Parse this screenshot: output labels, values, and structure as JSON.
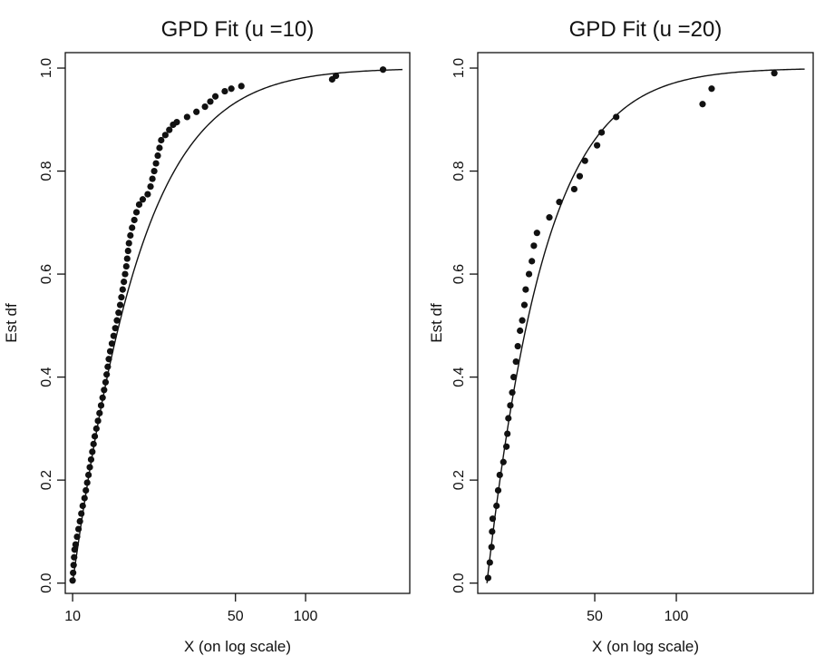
{
  "chart_data": [
    {
      "type": "scatter",
      "title": "GPD Fit (u =10)",
      "xlabel": "X (on log scale)",
      "ylabel": "Est df",
      "xscale": "log",
      "xlim": [
        9.3,
        280
      ],
      "ylim": [
        -0.02,
        1.03
      ],
      "xticks": [
        {
          "value": 10,
          "label": "10"
        },
        {
          "value": 50,
          "label": "50"
        },
        {
          "value": 100,
          "label": "100"
        }
      ],
      "yticks": [
        {
          "value": 0.0,
          "label": "0.0"
        },
        {
          "value": 0.2,
          "label": "0.2"
        },
        {
          "value": 0.4,
          "label": "0.4"
        },
        {
          "value": 0.6,
          "label": "0.6"
        },
        {
          "value": 0.8,
          "label": "0.8"
        },
        {
          "value": 1.0,
          "label": "1.0"
        }
      ],
      "grid": false,
      "fit": {
        "threshold": 10,
        "xi": 0.5,
        "sigma": 7.0
      },
      "points": [
        [
          10.0,
          0.005
        ],
        [
          10.05,
          0.02
        ],
        [
          10.1,
          0.035
        ],
        [
          10.15,
          0.05
        ],
        [
          10.2,
          0.065
        ],
        [
          10.3,
          0.075
        ],
        [
          10.45,
          0.09
        ],
        [
          10.6,
          0.105
        ],
        [
          10.75,
          0.12
        ],
        [
          10.9,
          0.135
        ],
        [
          11.05,
          0.15
        ],
        [
          11.25,
          0.165
        ],
        [
          11.4,
          0.18
        ],
        [
          11.55,
          0.195
        ],
        [
          11.7,
          0.21
        ],
        [
          11.85,
          0.225
        ],
        [
          12.0,
          0.24
        ],
        [
          12.15,
          0.255
        ],
        [
          12.3,
          0.27
        ],
        [
          12.45,
          0.285
        ],
        [
          12.65,
          0.3
        ],
        [
          12.85,
          0.315
        ],
        [
          13.05,
          0.33
        ],
        [
          13.25,
          0.345
        ],
        [
          13.45,
          0.36
        ],
        [
          13.65,
          0.375
        ],
        [
          13.85,
          0.39
        ],
        [
          14.0,
          0.405
        ],
        [
          14.15,
          0.42
        ],
        [
          14.3,
          0.435
        ],
        [
          14.5,
          0.45
        ],
        [
          14.75,
          0.465
        ],
        [
          15.0,
          0.48
        ],
        [
          15.25,
          0.495
        ],
        [
          15.5,
          0.51
        ],
        [
          15.75,
          0.525
        ],
        [
          16.0,
          0.54
        ],
        [
          16.2,
          0.555
        ],
        [
          16.4,
          0.57
        ],
        [
          16.6,
          0.585
        ],
        [
          16.8,
          0.6
        ],
        [
          17.0,
          0.615
        ],
        [
          17.15,
          0.63
        ],
        [
          17.3,
          0.645
        ],
        [
          17.45,
          0.66
        ],
        [
          17.7,
          0.675
        ],
        [
          18.0,
          0.69
        ],
        [
          18.4,
          0.705
        ],
        [
          18.8,
          0.72
        ],
        [
          19.3,
          0.735
        ],
        [
          20.0,
          0.745
        ],
        [
          21.0,
          0.755
        ],
        [
          21.6,
          0.77
        ],
        [
          22.0,
          0.785
        ],
        [
          22.4,
          0.8
        ],
        [
          22.8,
          0.815
        ],
        [
          23.2,
          0.83
        ],
        [
          23.6,
          0.845
        ],
        [
          24.0,
          0.86
        ],
        [
          25.0,
          0.87
        ],
        [
          26.0,
          0.88
        ],
        [
          27.0,
          0.89
        ],
        [
          28.0,
          0.895
        ],
        [
          31.0,
          0.905
        ],
        [
          34.0,
          0.915
        ],
        [
          37.0,
          0.925
        ],
        [
          39.0,
          0.935
        ],
        [
          41.0,
          0.945
        ],
        [
          45.0,
          0.955
        ],
        [
          48.0,
          0.96
        ],
        [
          53.0,
          0.965
        ],
        [
          130.0,
          0.978
        ],
        [
          135.0,
          0.985
        ],
        [
          215.0,
          0.997
        ]
      ]
    },
    {
      "type": "scatter",
      "title": "GPD Fit (u =20)",
      "xlabel": "X (on log scale)",
      "ylabel": "Est df",
      "xscale": "log",
      "xlim": [
        18.5,
        320
      ],
      "ylim": [
        -0.02,
        1.03
      ],
      "xticks": [
        {
          "value": 50,
          "label": "50"
        },
        {
          "value": 100,
          "label": "100"
        }
      ],
      "yticks": [
        {
          "value": 0.0,
          "label": "0.0"
        },
        {
          "value": 0.2,
          "label": "0.2"
        },
        {
          "value": 0.4,
          "label": "0.4"
        },
        {
          "value": 0.6,
          "label": "0.6"
        },
        {
          "value": 0.8,
          "label": "0.8"
        },
        {
          "value": 1.0,
          "label": "1.0"
        }
      ],
      "grid": false,
      "fit": {
        "threshold": 20,
        "xi": 0.4,
        "sigma": 10.0
      },
      "points": [
        [
          20.2,
          0.01
        ],
        [
          20.5,
          0.04
        ],
        [
          20.8,
          0.07
        ],
        [
          20.9,
          0.1
        ],
        [
          21.0,
          0.125
        ],
        [
          21.7,
          0.15
        ],
        [
          22.0,
          0.18
        ],
        [
          22.3,
          0.21
        ],
        [
          23.0,
          0.235
        ],
        [
          23.6,
          0.265
        ],
        [
          23.8,
          0.29
        ],
        [
          24.0,
          0.32
        ],
        [
          24.4,
          0.345
        ],
        [
          24.8,
          0.37
        ],
        [
          25.1,
          0.4
        ],
        [
          25.6,
          0.43
        ],
        [
          26.0,
          0.46
        ],
        [
          26.5,
          0.49
        ],
        [
          27.0,
          0.51
        ],
        [
          27.5,
          0.54
        ],
        [
          27.8,
          0.57
        ],
        [
          28.6,
          0.6
        ],
        [
          29.3,
          0.625
        ],
        [
          29.8,
          0.655
        ],
        [
          30.6,
          0.68
        ],
        [
          34.0,
          0.71
        ],
        [
          37.0,
          0.74
        ],
        [
          42.0,
          0.765
        ],
        [
          44.0,
          0.79
        ],
        [
          46.0,
          0.82
        ],
        [
          51.0,
          0.85
        ],
        [
          53.0,
          0.875
        ],
        [
          60.0,
          0.905
        ],
        [
          125.0,
          0.93
        ],
        [
          135.0,
          0.96
        ],
        [
          230.0,
          0.99
        ]
      ]
    }
  ]
}
